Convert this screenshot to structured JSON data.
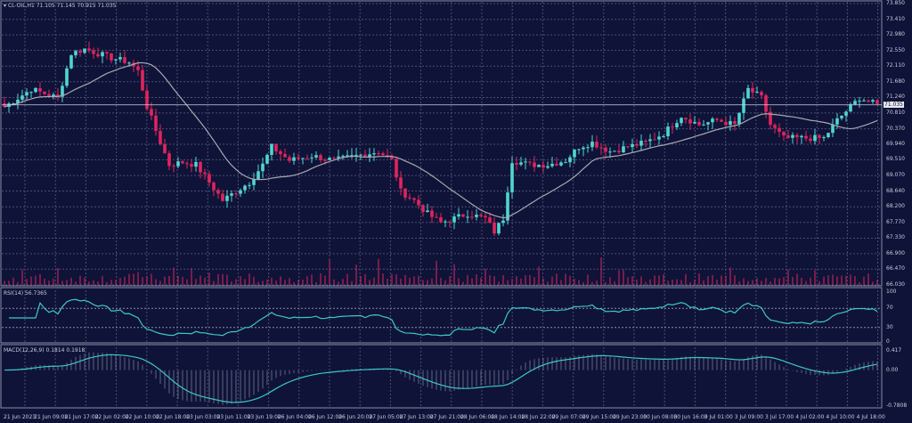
{
  "symbol_header": {
    "symbol": "CL-OIL,H1",
    "open": "71.105",
    "high": "71.145",
    "low": "70.915",
    "close": "71.035"
  },
  "current_price": "71.035",
  "price_axis": [
    "73.850",
    "73.410",
    "72.980",
    "72.550",
    "72.110",
    "71.680",
    "71.240",
    "70.810",
    "70.370",
    "69.940",
    "69.510",
    "69.070",
    "68.640",
    "68.200",
    "67.770",
    "67.330",
    "66.900",
    "66.470",
    "66.030"
  ],
  "rsi": {
    "label": "RSI(14) 56.7365",
    "axis": [
      "100",
      "70",
      "30",
      "0"
    ]
  },
  "macd": {
    "label": "MACD(12,26,9) 0.1814 0.1918",
    "axis": [
      "0.417",
      "0.00",
      "-0.7808"
    ]
  },
  "time_axis": [
    "21 Jun 2023",
    "21 Jun 09:00",
    "21 Jun 17:00",
    "22 Jun 02:00",
    "22 Jun 10:00",
    "22 Jun 18:00",
    "23 Jun 03:00",
    "23 Jun 11:00",
    "23 Jun 19:00",
    "26 Jun 04:00",
    "26 Jun 12:00",
    "26 Jun 20:00",
    "27 Jun 05:00",
    "27 Jun 13:00",
    "27 Jun 21:00",
    "28 Jun 06:00",
    "28 Jun 14:00",
    "28 Jun 22:00",
    "29 Jun 07:00",
    "29 Jun 15:00",
    "29 Jun 23:00",
    "30 Jun 08:00",
    "30 Jun 16:00",
    "3 Jul 01:00",
    "3 Jul 09:00",
    "3 Jul 17:00",
    "4 Jul 02:00",
    "4 Jul 10:00",
    "4 Jul 18:00"
  ],
  "colors": {
    "background": "#0f1338",
    "bull": "#4fd6d0",
    "bear": "#e0245e",
    "ma": "#a8a8b0",
    "rsi": "#3cc8c8",
    "grid": "#4a4f70"
  },
  "chart_data": {
    "type": "candlestick",
    "price_range": [
      66.03,
      73.85
    ],
    "close_keypoints": [
      [
        0,
        70.98
      ],
      [
        6,
        71.47
      ],
      [
        12,
        71.23
      ],
      [
        15,
        72.46
      ],
      [
        18,
        72.59
      ],
      [
        24,
        72.34
      ],
      [
        28,
        72.22
      ],
      [
        30,
        71.97
      ],
      [
        32,
        70.98
      ],
      [
        35,
        69.99
      ],
      [
        37,
        69.37
      ],
      [
        40,
        69.44
      ],
      [
        43,
        69.37
      ],
      [
        46,
        68.88
      ],
      [
        49,
        68.38
      ],
      [
        52,
        68.63
      ],
      [
        55,
        68.88
      ],
      [
        58,
        69.37
      ],
      [
        60,
        69.87
      ],
      [
        64,
        69.49
      ],
      [
        69,
        69.62
      ],
      [
        74,
        69.49
      ],
      [
        79,
        69.62
      ],
      [
        84,
        69.74
      ],
      [
        87,
        69.49
      ],
      [
        89,
        68.63
      ],
      [
        92,
        68.38
      ],
      [
        95,
        68.01
      ],
      [
        98,
        67.76
      ],
      [
        101,
        67.88
      ],
      [
        104,
        68.01
      ],
      [
        108,
        67.88
      ],
      [
        110,
        67.51
      ],
      [
        112,
        67.88
      ],
      [
        114,
        69.49
      ],
      [
        118,
        69.37
      ],
      [
        122,
        69.37
      ],
      [
        126,
        69.49
      ],
      [
        129,
        69.87
      ],
      [
        132,
        69.99
      ],
      [
        136,
        69.74
      ],
      [
        140,
        69.87
      ],
      [
        144,
        69.99
      ],
      [
        148,
        70.24
      ],
      [
        152,
        70.73
      ],
      [
        156,
        70.48
      ],
      [
        160,
        70.61
      ],
      [
        164,
        70.48
      ],
      [
        167,
        71.47
      ],
      [
        170,
        71.23
      ],
      [
        172,
        70.48
      ],
      [
        175,
        70.11
      ],
      [
        180,
        70.11
      ],
      [
        184,
        70.11
      ],
      [
        187,
        70.61
      ],
      [
        190,
        70.98
      ],
      [
        192,
        71.23
      ],
      [
        196,
        71.03
      ]
    ]
  }
}
